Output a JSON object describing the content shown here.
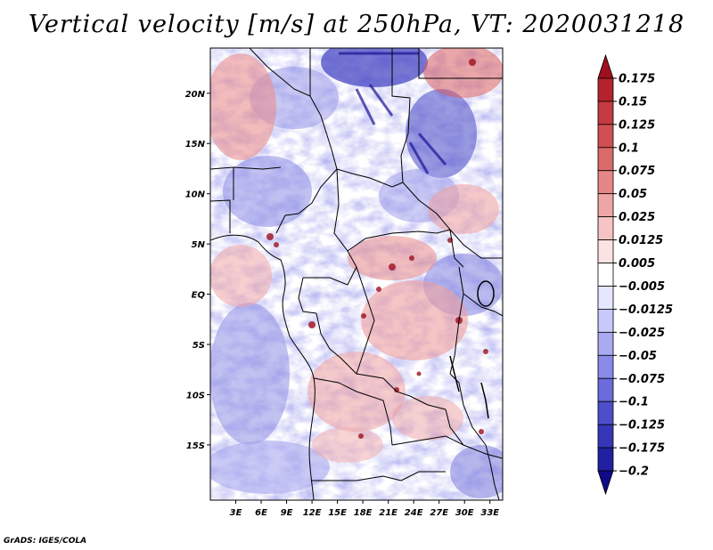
{
  "title": "Vertical velocity [m/s] at 250hPa, VT: 2020031218",
  "footer": "GrADS: IGES/COLA",
  "map": {
    "lon_range": [
      0,
      34.5
    ],
    "lat_range": [
      -20.5,
      24.5
    ],
    "lat_ticks": [
      {
        "value": 20,
        "label": "20N"
      },
      {
        "value": 15,
        "label": "15N"
      },
      {
        "value": 10,
        "label": "10N"
      },
      {
        "value": 5,
        "label": "5N"
      },
      {
        "value": 0,
        "label": "EQ"
      },
      {
        "value": -5,
        "label": "5S"
      },
      {
        "value": -10,
        "label": "10S"
      },
      {
        "value": -15,
        "label": "15S"
      }
    ],
    "lon_ticks": [
      {
        "value": 3,
        "label": "3E"
      },
      {
        "value": 6,
        "label": "6E"
      },
      {
        "value": 9,
        "label": "9E"
      },
      {
        "value": 12,
        "label": "12E"
      },
      {
        "value": 15,
        "label": "15E"
      },
      {
        "value": 18,
        "label": "18E"
      },
      {
        "value": 21,
        "label": "21E"
      },
      {
        "value": 24,
        "label": "24E"
      },
      {
        "value": 27,
        "label": "27E"
      },
      {
        "value": 30,
        "label": "30E"
      },
      {
        "value": 33,
        "label": "33E"
      }
    ]
  },
  "colorbar": {
    "levels": [
      "0.175",
      "0.15",
      "0.125",
      "0.1",
      "0.075",
      "0.05",
      "0.025",
      "0.0125",
      "0.005",
      "-0.005",
      "-0.0125",
      "-0.025",
      "-0.05",
      "-0.075",
      "-0.1",
      "-0.125",
      "-0.175",
      "-0.2"
    ],
    "colors": [
      "#a00f1e",
      "#b4232d",
      "#c33a40",
      "#d04f52",
      "#db6a6a",
      "#e58787",
      "#eea5a5",
      "#f6c4c4",
      "#fce3e3",
      "#ffffff",
      "#e6e6ff",
      "#c8c8fa",
      "#aaaaf2",
      "#8a8ae8",
      "#6b6bdc",
      "#4e4ecc",
      "#3636b8",
      "#2020a0",
      "#100a88"
    ]
  }
}
